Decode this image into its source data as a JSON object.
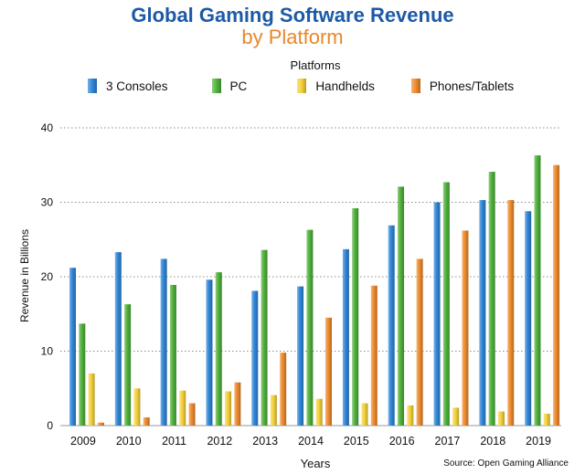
{
  "chart_data": {
    "type": "bar",
    "title": "Global Gaming Software Revenue",
    "subtitle": "by Platform",
    "legend_title": "Platforms",
    "legend_position": "top",
    "xlabel": "Years",
    "ylabel": "Revenue in Billions",
    "ylim": [
      0,
      40
    ],
    "yticks": [
      0,
      10,
      20,
      30,
      40
    ],
    "grid": true,
    "source": "Source: Open Gaming Alliance",
    "categories": [
      "2009",
      "2010",
      "2011",
      "2012",
      "2013",
      "2014",
      "2015",
      "2016",
      "2017",
      "2018",
      "2019"
    ],
    "series": [
      {
        "name": "3 Consoles",
        "color": "#2f86d8",
        "values": [
          21.2,
          23.3,
          22.4,
          19.6,
          18.1,
          18.7,
          23.7,
          26.9,
          30.0,
          30.3,
          28.8
        ]
      },
      {
        "name": "PC",
        "color": "#4fb13b",
        "values": [
          13.7,
          16.3,
          18.9,
          20.6,
          23.6,
          26.3,
          29.2,
          32.1,
          32.7,
          34.1,
          36.3
        ]
      },
      {
        "name": "Handhelds",
        "color": "#f4d13a",
        "values": [
          7.0,
          5.0,
          4.7,
          4.6,
          4.1,
          3.6,
          3.0,
          2.7,
          2.4,
          1.9,
          1.6
        ]
      },
      {
        "name": "Phones/Tablets",
        "color": "#ee8a2c",
        "values": [
          0.4,
          1.1,
          3.0,
          5.8,
          9.8,
          14.5,
          18.8,
          22.4,
          26.2,
          30.3,
          35.0
        ]
      }
    ]
  }
}
